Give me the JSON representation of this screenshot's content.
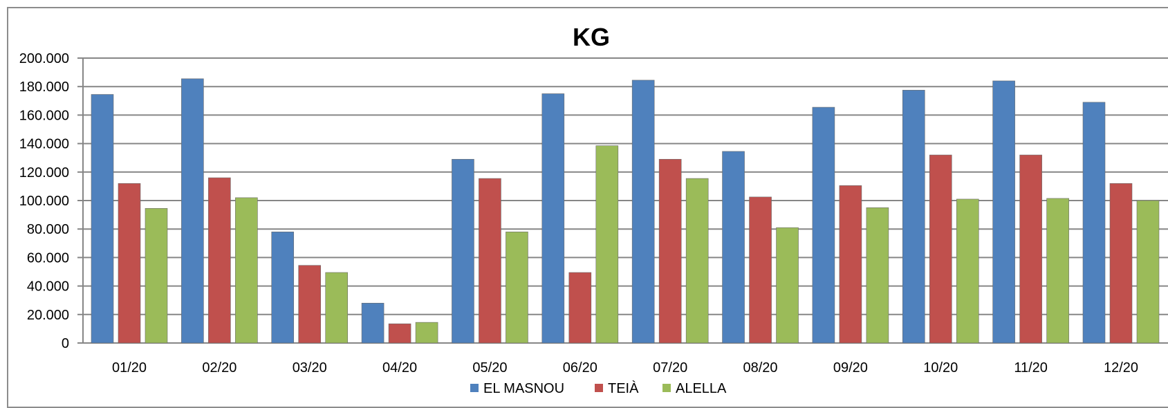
{
  "chart_data": {
    "type": "bar",
    "title": "KG",
    "xlabel": "",
    "ylabel": "",
    "categories": [
      "01/20",
      "02/20",
      "03/20",
      "04/20",
      "05/20",
      "06/20",
      "07/20",
      "08/20",
      "09/20",
      "10/20",
      "11/20",
      "12/20"
    ],
    "series": [
      {
        "name": "EL MASNOU",
        "color": "#4f81bd",
        "values": [
          174500,
          185500,
          78000,
          28000,
          129000,
          175000,
          184500,
          134500,
          165500,
          177500,
          184000,
          169000
        ]
      },
      {
        "name": "TEIÀ",
        "color": "#c0504d",
        "values": [
          112000,
          116000,
          54500,
          13500,
          115500,
          49500,
          129000,
          102500,
          110500,
          132000,
          132000,
          112000
        ]
      },
      {
        "name": "ALELLA",
        "color": "#9bbb59",
        "values": [
          94500,
          102000,
          49500,
          14500,
          78000,
          138500,
          115500,
          81000,
          95000,
          101000,
          101500,
          100000
        ]
      }
    ],
    "ylim": [
      0,
      200000
    ],
    "yticks": [
      0,
      20000,
      40000,
      60000,
      80000,
      100000,
      120000,
      140000,
      160000,
      180000,
      200000
    ],
    "ytick_labels": [
      "0",
      "20.000",
      "40.000",
      "60.000",
      "80.000",
      "100.000",
      "120.000",
      "140.000",
      "160.000",
      "180.000",
      "200.000"
    ],
    "grid": true,
    "legend": "bottom"
  }
}
